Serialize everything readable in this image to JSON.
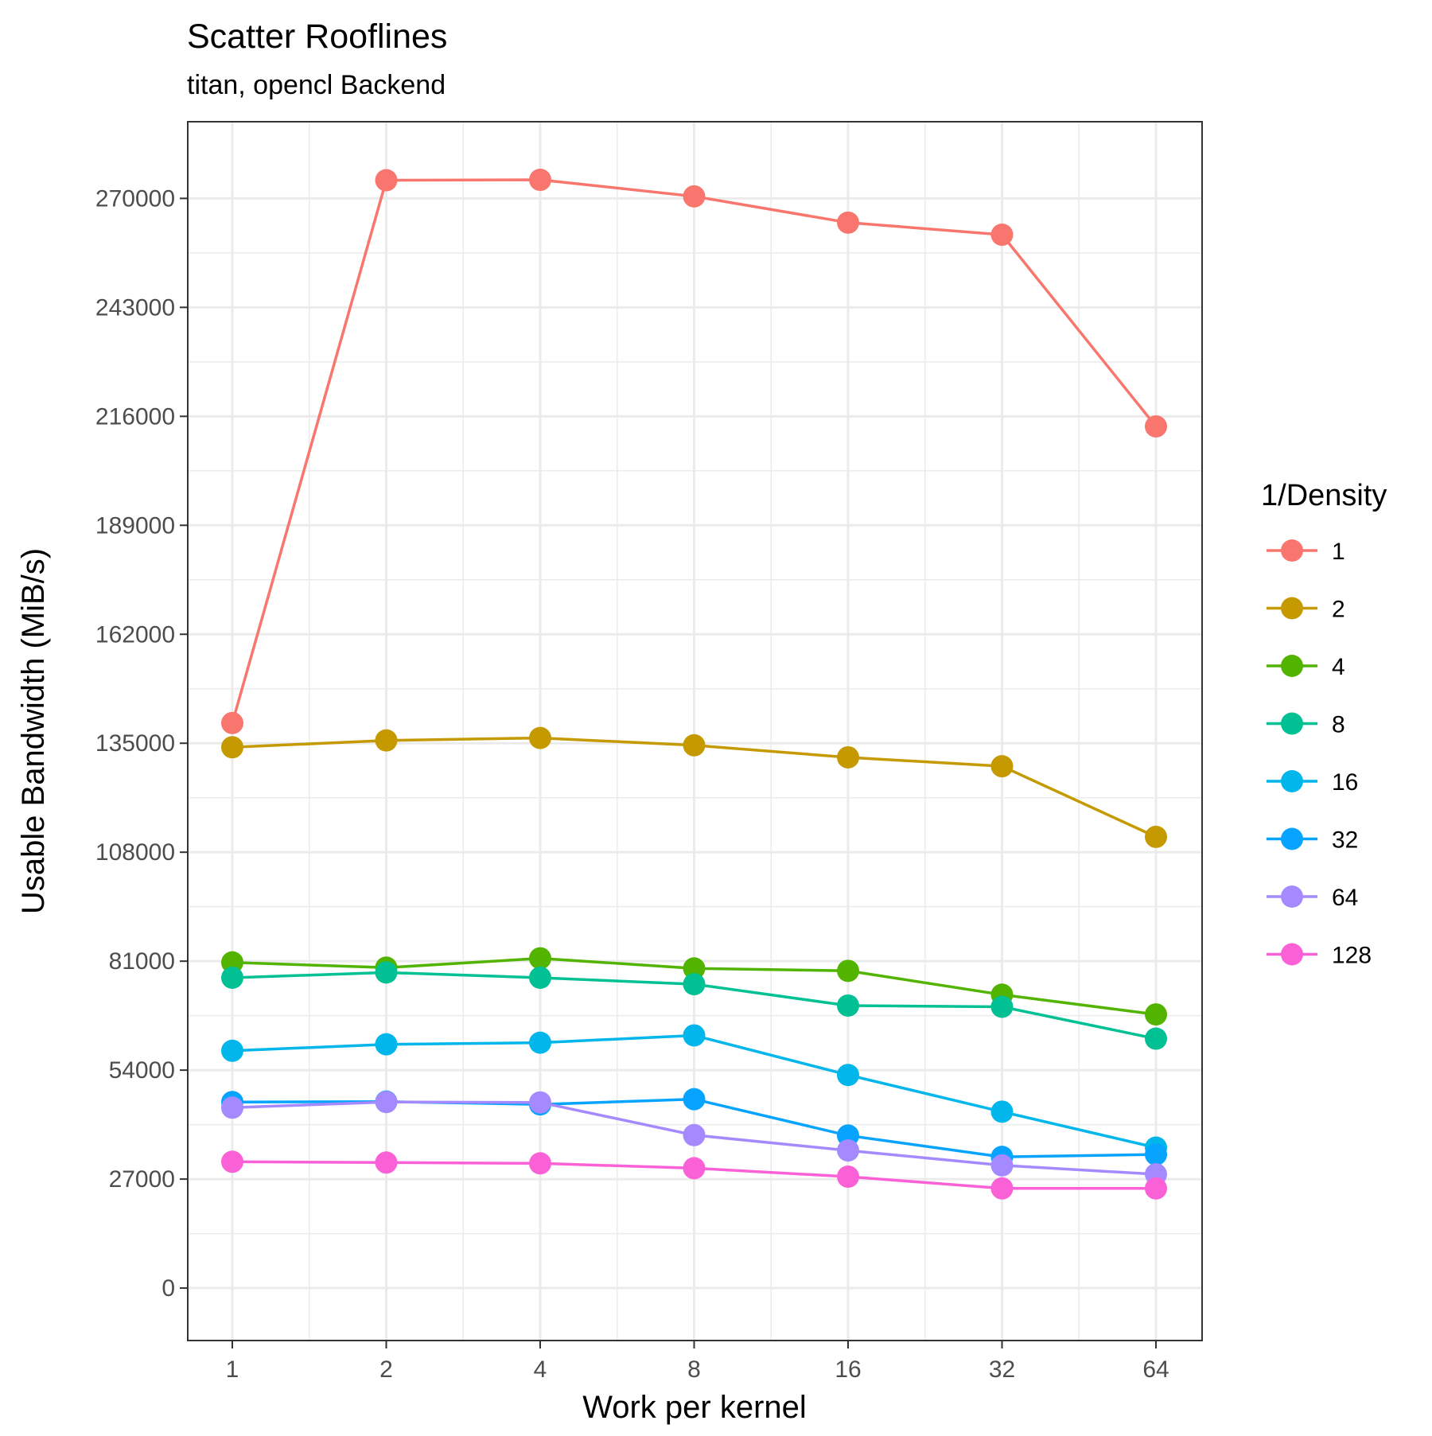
{
  "chart_data": {
    "type": "line",
    "title": "Scatter Rooflines",
    "subtitle": "titan, opencl Backend",
    "xlabel": "Work per kernel",
    "ylabel": "Usable Bandwidth (MiB/s)",
    "x_scale": "log2",
    "x": [
      1,
      2,
      4,
      8,
      16,
      32,
      64
    ],
    "x_tick_labels": [
      "1",
      "2",
      "4",
      "8",
      "16",
      "32",
      "64"
    ],
    "y_ticks": [
      0,
      27000,
      54000,
      81000,
      108000,
      135000,
      162000,
      189000,
      216000,
      243000,
      270000
    ],
    "y_tick_labels": [
      "0",
      "27000",
      "54000",
      "81000",
      "108000",
      "135000",
      "162000",
      "189000",
      "216000",
      "243000",
      "270000"
    ],
    "ylim": [
      -13000,
      289000
    ],
    "grid": true,
    "markers": true,
    "legend": {
      "title": "1/Density",
      "position": "right"
    },
    "series": [
      {
        "name": "1",
        "color": "#F8766D",
        "values": [
          140000,
          274500,
          274600,
          270500,
          264000,
          261000,
          213500
        ]
      },
      {
        "name": "2",
        "color": "#C49A00",
        "values": [
          134000,
          135700,
          136300,
          134500,
          131500,
          129300,
          111800
        ]
      },
      {
        "name": "4",
        "color": "#53B400",
        "values": [
          80700,
          79400,
          81700,
          79200,
          78600,
          72700,
          67800
        ]
      },
      {
        "name": "8",
        "color": "#00C094",
        "values": [
          76900,
          78200,
          76900,
          75300,
          70000,
          69700,
          61800
        ]
      },
      {
        "name": "16",
        "color": "#00B6EB",
        "values": [
          58800,
          60400,
          60800,
          62600,
          52800,
          43700,
          34800
        ]
      },
      {
        "name": "32",
        "color": "#06A4FF",
        "values": [
          46100,
          46200,
          45500,
          46800,
          37800,
          32500,
          33100
        ]
      },
      {
        "name": "64",
        "color": "#A58AFF",
        "values": [
          44700,
          46100,
          46000,
          37900,
          34100,
          30400,
          28200
        ]
      },
      {
        "name": "128",
        "color": "#FB61D7",
        "values": [
          31300,
          31100,
          30900,
          29700,
          27600,
          24700,
          24700
        ]
      }
    ]
  }
}
